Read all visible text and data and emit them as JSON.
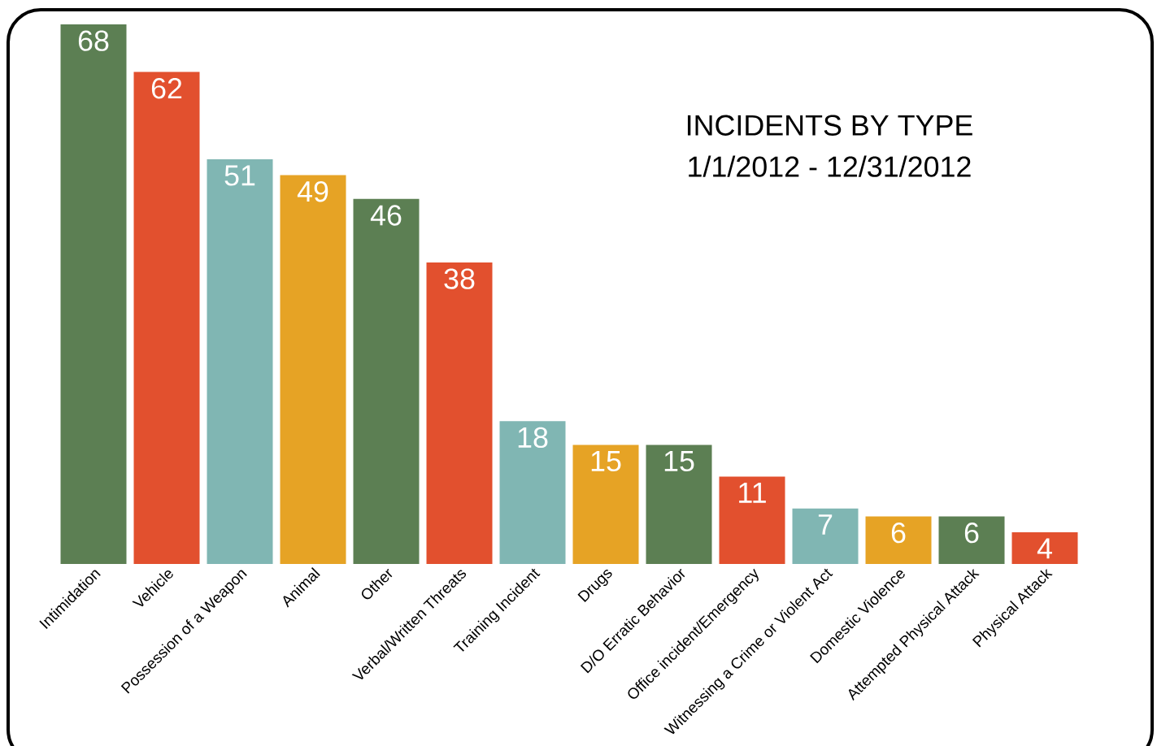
{
  "chart_data": {
    "type": "bar",
    "title": "INCIDENTS BY TYPE",
    "subtitle": "1/1/2012 - 12/31/2012",
    "categories": [
      "Intimidation",
      "Vehicle",
      "Possession of a Weapon",
      "Animal",
      "Other",
      "Verbal/Written Threats",
      "Training Incident",
      "Drugs",
      "D/O Erratic Behavior",
      "Office incident/Emergency",
      "Witnessing a Crime or Violent Act",
      "Domestic Violence",
      "Attempted Physical Attack",
      "Physical Attack"
    ],
    "values": [
      68,
      62,
      51,
      49,
      46,
      38,
      18,
      15,
      15,
      11,
      7,
      6,
      6,
      4
    ],
    "colors": [
      "#5c7f53",
      "#e2502e",
      "#80b6b3",
      "#e6a325",
      "#5c7f53",
      "#e2502e",
      "#80b6b3",
      "#e6a325",
      "#5c7f53",
      "#e2502e",
      "#80b6b3",
      "#e6a325",
      "#5c7f53",
      "#e2502e"
    ],
    "data_labels": true
  }
}
